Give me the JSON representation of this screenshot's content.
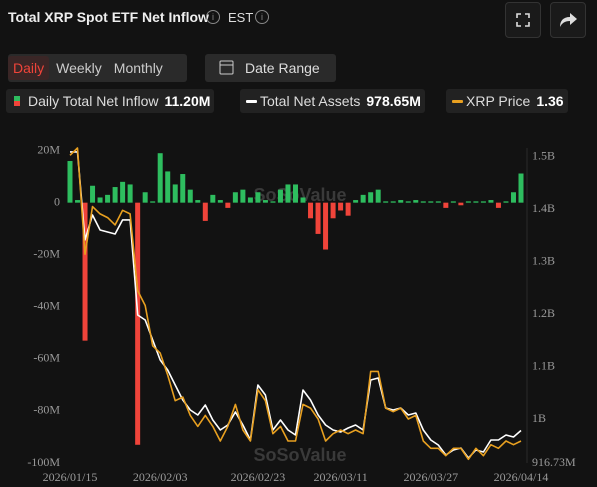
{
  "header": {
    "title": "Total XRP Spot ETF Net Inflow",
    "timezone": "EST"
  },
  "tabs": [
    "Daily",
    "Weekly",
    "Monthly"
  ],
  "date_range": "Date Range",
  "chart_data": {
    "type": "combo",
    "watermark": "SoSoValue",
    "categories": [
      "2026/01/15",
      null,
      null,
      null,
      null,
      null,
      null,
      null,
      null,
      null,
      null,
      null,
      "2026/02/03",
      null,
      null,
      null,
      null,
      null,
      null,
      null,
      null,
      null,
      null,
      null,
      null,
      "2026/02/23",
      null,
      null,
      null,
      null,
      null,
      null,
      null,
      null,
      null,
      null,
      "2026/03/11",
      null,
      null,
      null,
      null,
      null,
      null,
      null,
      null,
      null,
      null,
      null,
      "2026/03/27",
      null,
      null,
      null,
      null,
      null,
      null,
      null,
      null,
      null,
      null,
      null,
      "2026/04/14"
    ],
    "ylim": [
      -100,
      21
    ],
    "yticks": [
      {
        "value": 20,
        "label": "20M"
      },
      0,
      {
        "value": -20,
        "label": "-20M"
      },
      {
        "value": -40,
        "label": "-40M"
      },
      {
        "value": -60,
        "label": "-60M"
      },
      {
        "value": -80,
        "label": "-80M"
      },
      {
        "value": -100,
        "label": "-100M"
      }
    ],
    "y2lim": [
      916.73,
      1517
    ],
    "y2ticks": [
      {
        "value": 1500,
        "label": "1.5B"
      },
      {
        "value": 1400,
        "label": "1.4B"
      },
      {
        "value": 1300,
        "label": "1.3B"
      },
      {
        "value": 1200,
        "label": "1.2B"
      },
      {
        "value": 1100,
        "label": "1.1B"
      },
      {
        "value": 1000,
        "label": "1B"
      },
      {
        "value": 916.73,
        "label": "916.73M"
      }
    ],
    "y3lim": [
      1.3,
      2.16
    ],
    "series": [
      {
        "name": "Daily Total Net Inflow",
        "latest": "11.20M",
        "type": "bar",
        "axis": "y",
        "color": "#2ebd5f",
        "negative_color": "#f0443a",
        "values": [
          16,
          1,
          -53,
          6.5,
          2,
          3,
          6,
          8,
          7,
          -93,
          4,
          0.5,
          19,
          12,
          7,
          11,
          5,
          1,
          -7,
          3,
          1,
          -2,
          4,
          5,
          2,
          4,
          1,
          0.5,
          5,
          7,
          7,
          2,
          -6,
          -12,
          -18,
          -6,
          -3,
          -5,
          1,
          3,
          4,
          5,
          0.5,
          0.5,
          1,
          0.5,
          1,
          0.5,
          0.5,
          0.5,
          -2,
          0.5,
          -1,
          0.5,
          0.5,
          0.5,
          1,
          -2,
          0.5,
          4,
          11.2
        ]
      },
      {
        "name": "Total Net Assets",
        "latest": "978.65M",
        "type": "line",
        "axis": "y2",
        "color": "#ffffff",
        "values": [
          1509.5,
          1509.5,
          1341.8,
          1389.4,
          1360.8,
          1357,
          1353.2,
          1379.9,
          1379.9,
          1198.8,
          1189.3,
          1151.1,
          1113,
          1094,
          1065.4,
          1036.8,
          1017.7,
          1008.2,
          1027.2,
          998.7,
          979.6,
          989.1,
          1013.9,
          989.1,
          960.5,
          1065.4,
          1046.3,
          979.6,
          998.7,
          979.6,
          970.1,
          1055.8,
          1036.8,
          1008.2,
          989.1,
          979.6,
          975.8,
          983.4,
          989.1,
          979.6,
          1074.9,
          1078.7,
          1021.5,
          1017.7,
          1021.5,
          1008.2,
          1012,
          979.6,
          960.5,
          951,
          931.9,
          941.5,
          945.3,
          926.2,
          941.5,
          937.7,
          960.5,
          960.5,
          970.1,
          966.3,
          978.65
        ]
      },
      {
        "name": "XRP Price",
        "latest": "1.36",
        "type": "line",
        "axis": "y3",
        "color": "#e8a020",
        "values": [
          2.14,
          2.16,
          1.87,
          2.0,
          1.98,
          1.97,
          1.95,
          1.99,
          1.98,
          1.77,
          1.73,
          1.62,
          1.6,
          1.54,
          1.47,
          1.48,
          1.43,
          1.4,
          1.43,
          1.4,
          1.36,
          1.4,
          1.46,
          1.39,
          1.36,
          1.5,
          1.47,
          1.38,
          1.4,
          1.36,
          1.36,
          1.46,
          1.45,
          1.42,
          1.36,
          1.38,
          1.39,
          1.38,
          1.39,
          1.38,
          1.55,
          1.55,
          1.45,
          1.44,
          1.45,
          1.42,
          1.43,
          1.36,
          1.34,
          1.34,
          1.32,
          1.34,
          1.34,
          1.31,
          1.34,
          1.32,
          1.35,
          1.34,
          1.36,
          1.35,
          1.36
        ]
      }
    ]
  }
}
